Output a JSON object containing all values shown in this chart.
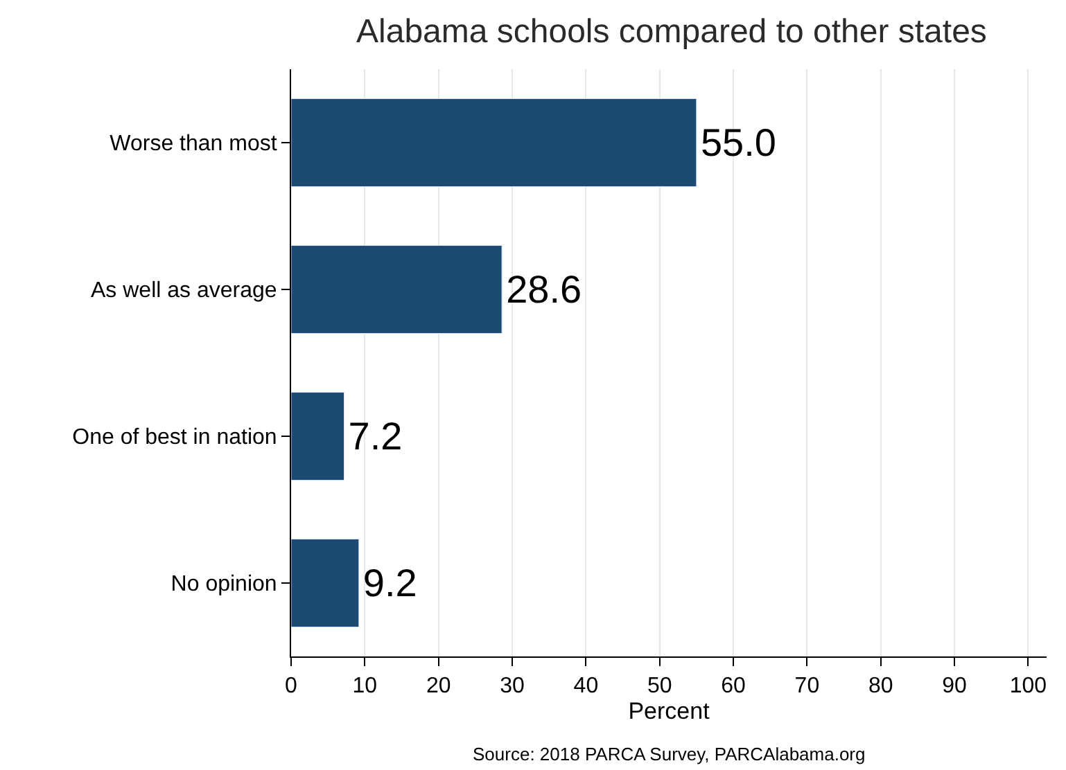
{
  "chart_data": {
    "type": "bar",
    "orientation": "horizontal",
    "title": "Alabama schools compared to other states",
    "categories": [
      "Worse than most",
      "As well as average",
      "One of best in nation",
      "No opinion"
    ],
    "values": [
      55.0,
      28.6,
      7.2,
      9.2
    ],
    "value_labels": [
      "55.0",
      "28.6",
      "7.2",
      "9.2"
    ],
    "color": "#1d4a73",
    "xlabel": "Percent",
    "xlim": [
      0,
      102.5
    ],
    "xticks": [
      0,
      10,
      20,
      30,
      40,
      50,
      60,
      70,
      80,
      90,
      100
    ],
    "grid": "x",
    "annotations": [
      "Source: 2018 PARCA Survey, PARCAlabama.org"
    ]
  }
}
